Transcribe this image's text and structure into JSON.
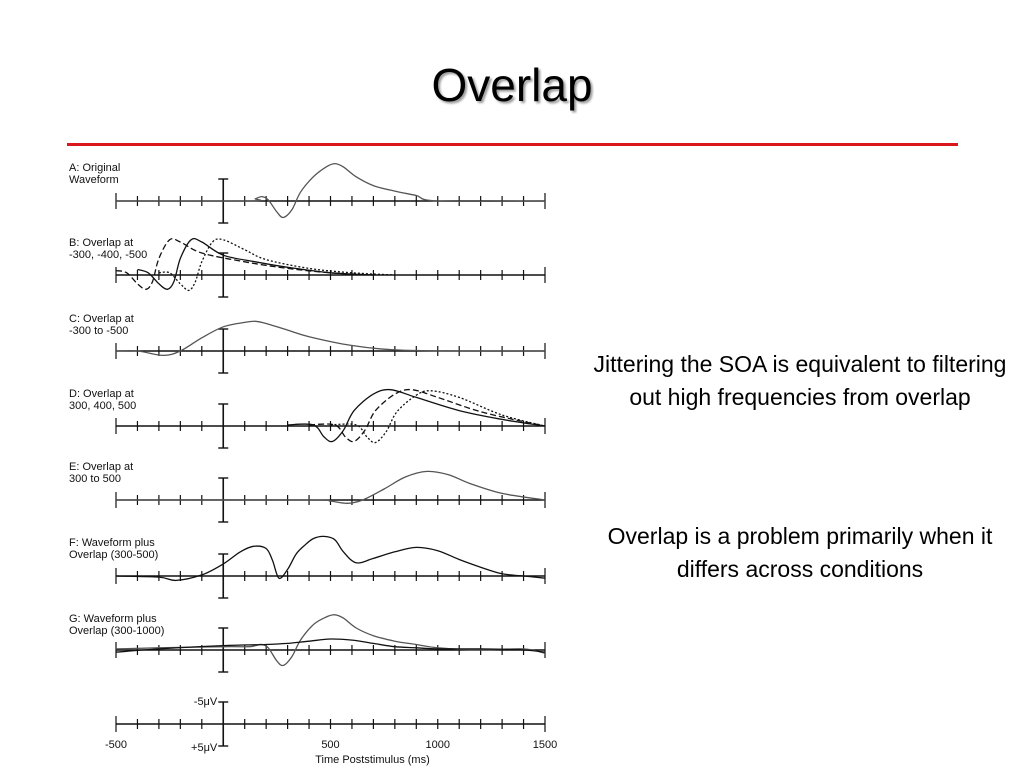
{
  "slide": {
    "title": "Overlap",
    "points": [
      "Jittering the SOA is equivalent to filtering out high frequencies from overlap",
      "Overlap is a problem primarily when it differs across conditions"
    ]
  },
  "colors": {
    "rule": "#d9171d",
    "axis": "#111111",
    "wave_black": "#111111",
    "wave_gray": "#555555"
  },
  "figure": {
    "panels": [
      {
        "label_lines": [
          "A: Original",
          "Waveform"
        ]
      },
      {
        "label_lines": [
          "B: Overlap at",
          "-300, -400, -500"
        ]
      },
      {
        "label_lines": [
          "C: Overlap at",
          "-300 to -500"
        ]
      },
      {
        "label_lines": [
          "D: Overlap at",
          "300, 400, 500"
        ]
      },
      {
        "label_lines": [
          "E: Overlap at",
          "300 to 500"
        ]
      },
      {
        "label_lines": [
          "F: Waveform plus",
          "Overlap (300-500)"
        ]
      },
      {
        "label_lines": [
          "G: Waveform plus",
          "Overlap (300-1000)"
        ]
      }
    ],
    "scale_top_label": "-5μV",
    "scale_bottom_label": "+5μV",
    "x_ticks": [
      "-500",
      "500",
      "1000",
      "1500"
    ],
    "x_label": "Time Poststimulus (ms)"
  },
  "chart_data": {
    "type": "line",
    "x_range": [
      -500,
      1500
    ],
    "xlabel": "Time Poststimulus (ms)",
    "ticks": [
      -500,
      500,
      1000,
      1500
    ],
    "polarity": "negative up",
    "panels": [
      {
        "id": "A",
        "series": [
          {
            "x": [
              -500,
              120,
              150,
              180,
              210,
              250,
              280,
              320,
              360,
              420,
              480,
              520,
              560,
              620,
              700,
              800,
              900,
              1000,
              1500
            ],
            "y": [
              0,
              0,
              0.2,
              0.4,
              0.1,
              -1.0,
              -1.5,
              -0.8,
              0.8,
              2.2,
              3.1,
              3.4,
              3.1,
              2.2,
              1.4,
              0.9,
              0.5,
              0.0,
              0.0
            ]
          }
        ]
      },
      {
        "id": "B",
        "series": [
          {
            "x": [
              -400,
              -350,
              -300,
              -260,
              -230,
              -200,
              -150,
              -100,
              0,
              150,
              300,
              500,
              700
            ],
            "y": [
              0.5,
              0.2,
              -0.8,
              -1.3,
              -0.6,
              1.5,
              3.2,
              3.0,
              1.8,
              1.2,
              0.7,
              0.2,
              0
            ]
          },
          {
            "x": [
              -500,
              -450,
              -400,
              -360,
              -330,
              -300,
              -250,
              -200,
              -100,
              100,
              300,
              500,
              700
            ],
            "y": [
              0.4,
              0.2,
              -0.8,
              -1.3,
              -0.6,
              1.5,
              3.2,
              3.0,
              2.0,
              1.2,
              0.6,
              0.2,
              0
            ]
          },
          {
            "x": [
              -300,
              -250,
              -200,
              -160,
              -130,
              -100,
              -50,
              0,
              100,
              200,
              400,
              600,
              800
            ],
            "y": [
              0.2,
              0.2,
              -0.8,
              -1.4,
              -0.6,
              1.2,
              3.0,
              3.2,
              2.3,
              1.4,
              0.6,
              0.2,
              0
            ]
          }
        ]
      },
      {
        "id": "C",
        "series": [
          {
            "x": [
              -500,
              -400,
              -280,
              -200,
              -100,
              0,
              100,
              150,
              200,
              300,
              400,
              600,
              800,
              1100,
              1500
            ],
            "y": [
              0,
              0,
              -0.4,
              0,
              1.2,
              2.2,
              2.6,
              2.7,
              2.5,
              1.9,
              1.3,
              0.5,
              0.1,
              0,
              0
            ]
          }
        ]
      },
      {
        "id": "D",
        "series": [
          {
            "x": [
              300,
              420,
              470,
              510,
              560,
              610,
              700,
              780,
              900,
              1100,
              1300,
              1500
            ],
            "y": [
              0.1,
              0.1,
              -1.0,
              -1.4,
              -0.4,
              1.4,
              2.9,
              3.3,
              2.6,
              1.4,
              0.6,
              0
            ]
          },
          {
            "x": [
              400,
              520,
              570,
              610,
              660,
              710,
              800,
              880,
              1000,
              1200,
              1400,
              1500
            ],
            "y": [
              0.1,
              0.1,
              -1.0,
              -1.4,
              -0.4,
              1.4,
              2.9,
              3.3,
              2.6,
              1.3,
              0.4,
              0
            ]
          },
          {
            "x": [
              500,
              620,
              670,
              710,
              760,
              810,
              900,
              970,
              1100,
              1300,
              1500
            ],
            "y": [
              0.1,
              0.1,
              -1.0,
              -1.5,
              -0.5,
              1.3,
              2.8,
              3.2,
              2.6,
              1.0,
              0
            ]
          }
        ]
      },
      {
        "id": "E",
        "series": [
          {
            "x": [
              -500,
              400,
              500,
              580,
              650,
              750,
              850,
              950,
              1050,
              1150,
              1300,
              1500
            ],
            "y": [
              0,
              0,
              -0.1,
              -0.3,
              0,
              1.0,
              2.1,
              2.6,
              2.3,
              1.5,
              0.6,
              0
            ]
          }
        ]
      },
      {
        "id": "F",
        "series": [
          {
            "x": [
              -500,
              -300,
              -220,
              -100,
              0,
              80,
              140,
              200,
              230,
              260,
              300,
              340,
              380,
              420,
              470,
              520,
              560,
              620,
              700,
              800,
              900,
              1000,
              1100,
              1200,
              1300,
              1400,
              1500
            ],
            "y": [
              0,
              -0.1,
              -0.4,
              0.1,
              1.1,
              2.2,
              2.7,
              2.5,
              1.4,
              -0.2,
              0.6,
              2.0,
              2.8,
              3.4,
              3.6,
              3.3,
              2.2,
              1.2,
              1.6,
              2.2,
              2.6,
              2.3,
              1.5,
              0.8,
              0.2,
              0,
              -0.2
            ]
          }
        ]
      },
      {
        "id": "G",
        "series": [
          {
            "x": [
              -500,
              -300,
              0,
              120,
              150,
              180,
              210,
              250,
              280,
              320,
              360,
              420,
              480,
              520,
              560,
              620,
              700,
              800,
              900,
              1000,
              1200,
              1400,
              1500
            ],
            "y": [
              0.1,
              0.2,
              0.3,
              0.3,
              0.4,
              0.5,
              0.2,
              -1.0,
              -1.4,
              -0.6,
              0.9,
              2.3,
              3.0,
              3.2,
              2.9,
              2.0,
              1.3,
              0.8,
              0.5,
              0.2,
              0,
              0.1,
              -0.3
            ]
          },
          {
            "x": [
              -500,
              -300,
              0,
              200,
              300,
              400,
              500,
              600,
              700,
              800,
              900,
              1000,
              1200,
              1400,
              1500
            ],
            "y": [
              -0.2,
              0.1,
              0.4,
              0.5,
              0.6,
              0.8,
              1.0,
              0.9,
              0.6,
              0.3,
              0.2,
              0.1,
              0.1,
              0,
              -0.2
            ]
          }
        ]
      }
    ]
  }
}
